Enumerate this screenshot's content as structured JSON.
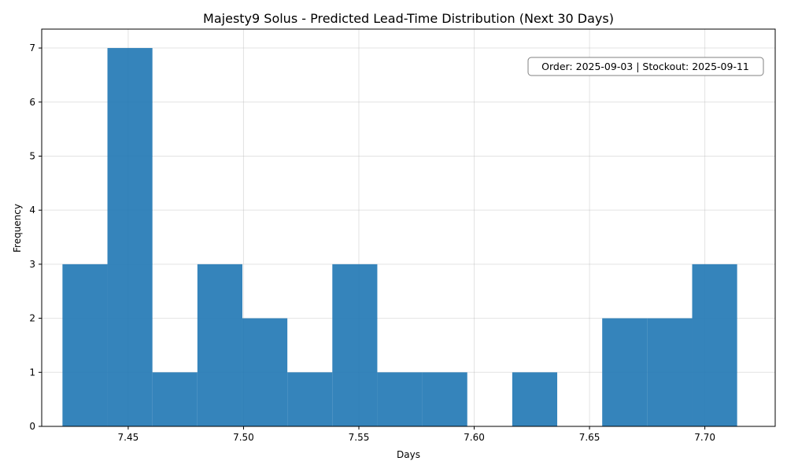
{
  "chart_data": {
    "type": "histogram",
    "title": "Majesty9 Solus - Predicted Lead-Time Distribution (Next 30 Days)",
    "xlabel": "Days",
    "ylabel": "Frequency",
    "xlim": [
      7.4125,
      7.7305
    ],
    "ylim": [
      0,
      7.35
    ],
    "grid": true,
    "bar_color": "#1f77b4",
    "bins": [
      {
        "x0": 7.4215,
        "x1": 7.441,
        "count": 3
      },
      {
        "x0": 7.441,
        "x1": 7.4605,
        "count": 7
      },
      {
        "x0": 7.4605,
        "x1": 7.48,
        "count": 1
      },
      {
        "x0": 7.48,
        "x1": 7.4995,
        "count": 3
      },
      {
        "x0": 7.4995,
        "x1": 7.519,
        "count": 2
      },
      {
        "x0": 7.519,
        "x1": 7.5385,
        "count": 1
      },
      {
        "x0": 7.5385,
        "x1": 7.558,
        "count": 3
      },
      {
        "x0": 7.558,
        "x1": 7.5775,
        "count": 1
      },
      {
        "x0": 7.5775,
        "x1": 7.597,
        "count": 1
      },
      {
        "x0": 7.597,
        "x1": 7.6165,
        "count": 0
      },
      {
        "x0": 7.6165,
        "x1": 7.636,
        "count": 1
      },
      {
        "x0": 7.636,
        "x1": 7.6555,
        "count": 0
      },
      {
        "x0": 7.6555,
        "x1": 7.675,
        "count": 2
      },
      {
        "x0": 7.675,
        "x1": 7.6945,
        "count": 2
      },
      {
        "x0": 7.6945,
        "x1": 7.714,
        "count": 3
      }
    ],
    "x_ticks": [
      {
        "value": 7.45,
        "label": "7.45"
      },
      {
        "value": 7.5,
        "label": "7.50"
      },
      {
        "value": 7.55,
        "label": "7.55"
      },
      {
        "value": 7.6,
        "label": "7.60"
      },
      {
        "value": 7.65,
        "label": "7.65"
      },
      {
        "value": 7.7,
        "label": "7.70"
      }
    ],
    "y_ticks": [
      {
        "value": 0,
        "label": "0"
      },
      {
        "value": 1,
        "label": "1"
      },
      {
        "value": 2,
        "label": "2"
      },
      {
        "value": 3,
        "label": "3"
      },
      {
        "value": 4,
        "label": "4"
      },
      {
        "value": 5,
        "label": "5"
      },
      {
        "value": 6,
        "label": "6"
      },
      {
        "value": 7,
        "label": "7"
      }
    ],
    "annotation": {
      "text": "Order: 2025-09-03 | Stockout: 2025-09-11",
      "placement": "top-right"
    }
  }
}
